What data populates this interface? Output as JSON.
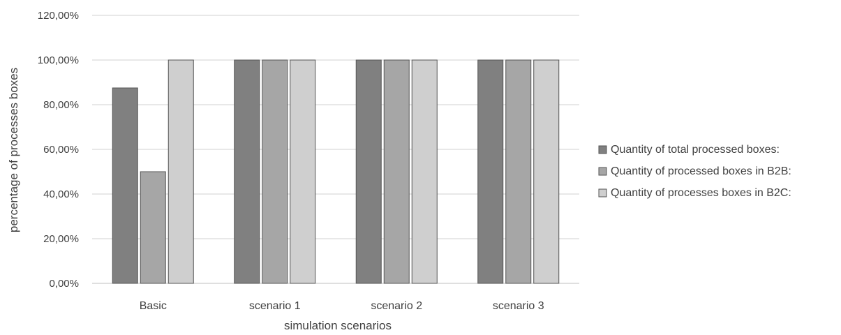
{
  "chart_data": {
    "type": "bar",
    "title": "",
    "xlabel": "simulation scenarios",
    "ylabel": "percentage of processes boxes",
    "ylim": [
      0,
      120
    ],
    "y_ticks": [
      0,
      20,
      40,
      60,
      80,
      100,
      120
    ],
    "y_tick_labels": [
      "0,00%",
      "20,00%",
      "40,00%",
      "60,00%",
      "80,00%",
      "100,00%",
      "120,00%"
    ],
    "categories": [
      "Basic",
      "scenario 1",
      "scenario 2",
      "scenario 3"
    ],
    "series": [
      {
        "name": "Quantity of total processed boxes:",
        "values": [
          87.5,
          100,
          100,
          100
        ],
        "color": "#808080"
      },
      {
        "name": "Quantity of processed boxes in B2B:",
        "values": [
          50,
          100,
          100,
          100
        ],
        "color": "#a6a6a6"
      },
      {
        "name": "Quantity of processes boxes in B2C:",
        "values": [
          100,
          100,
          100,
          100
        ],
        "color": "#cfcfcf"
      }
    ],
    "legend": "right",
    "grid": true
  }
}
